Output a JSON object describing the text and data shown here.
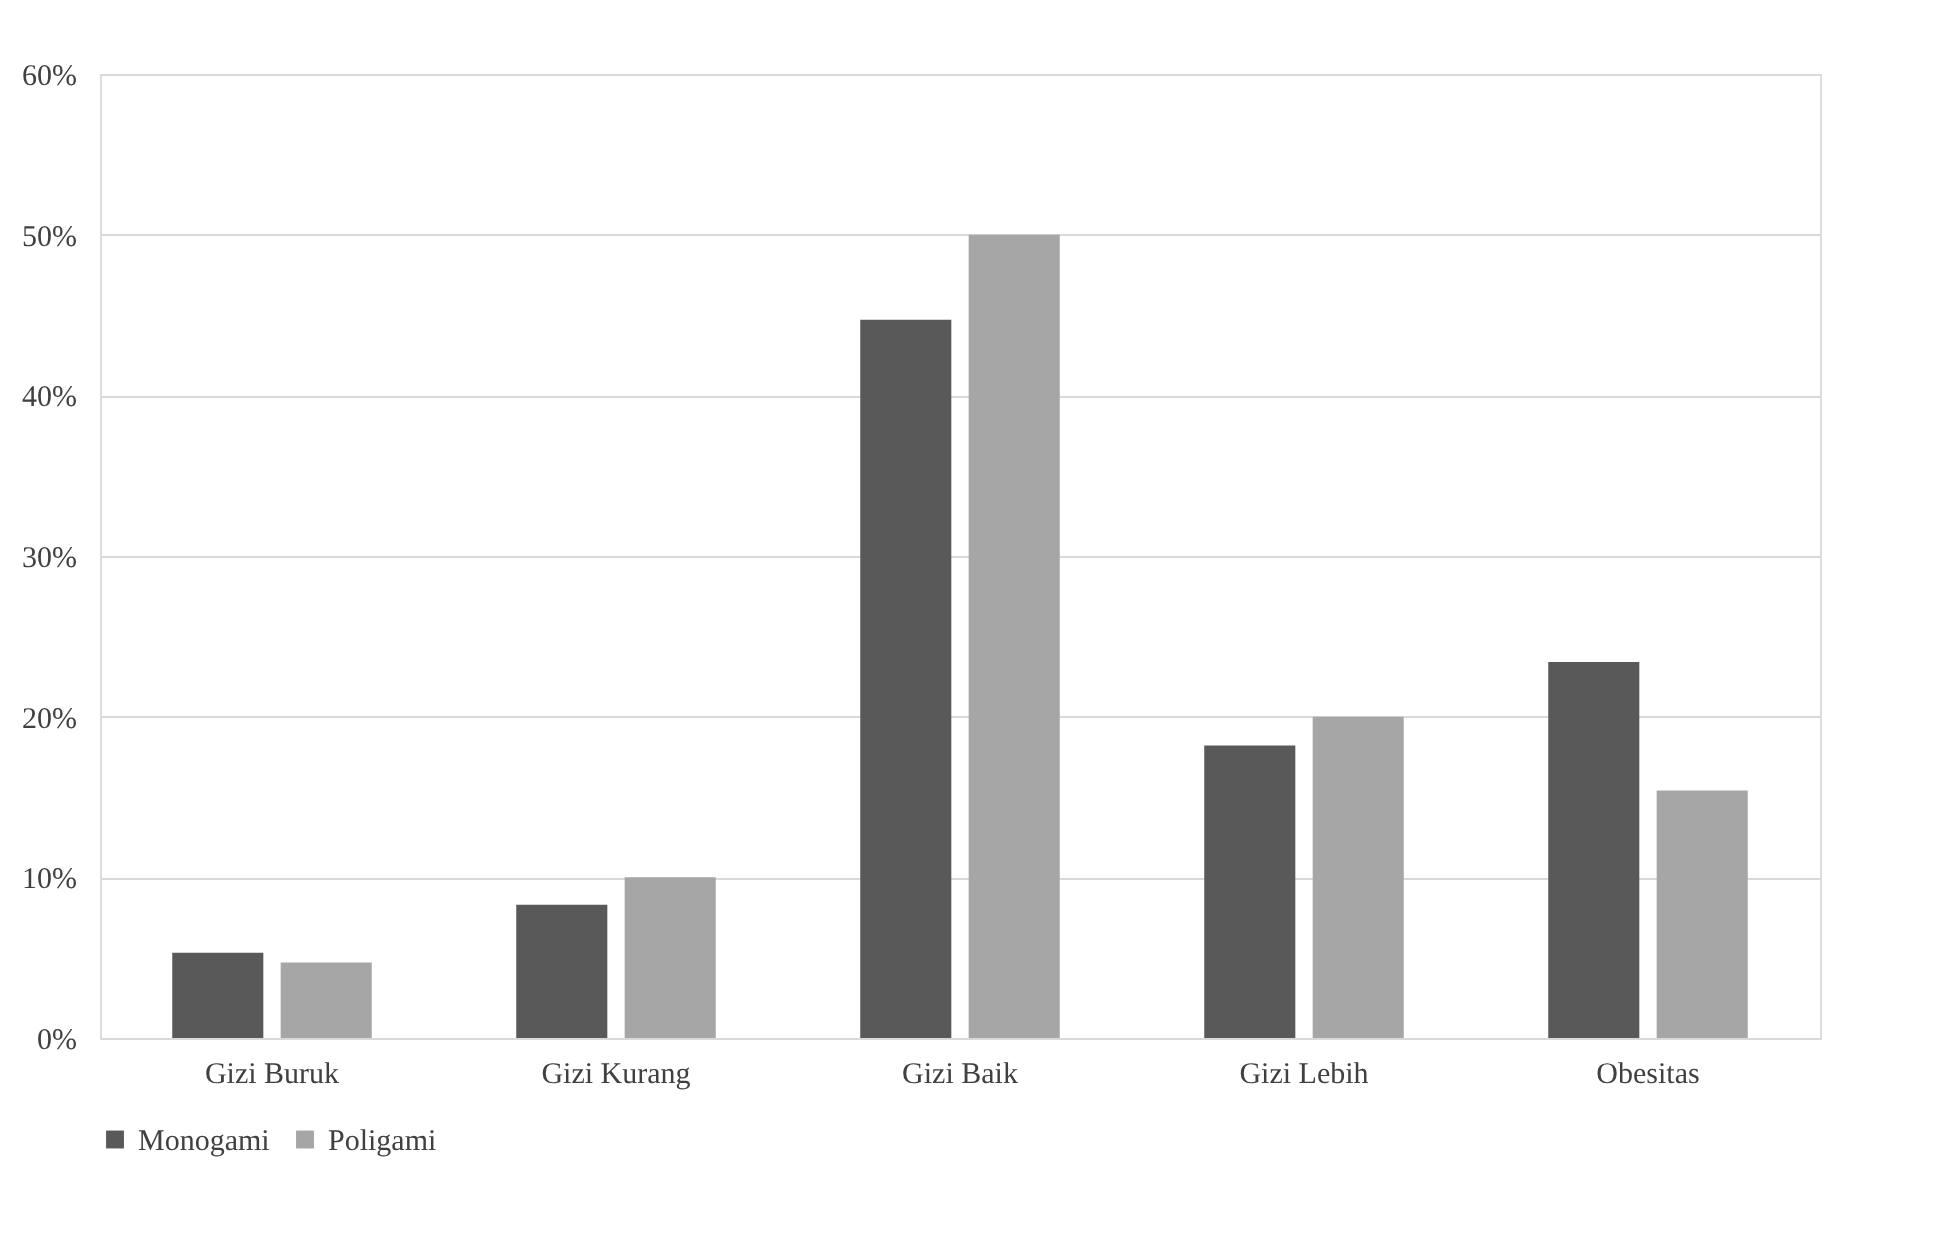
{
  "chart_data": {
    "type": "bar",
    "categories": [
      "Gizi Buruk",
      "Gizi Kurang",
      "Gizi Baik",
      "Gizi Lebih",
      "Obesitas"
    ],
    "series": [
      {
        "name": "Monogami",
        "color": "#595959",
        "values": [
          5.3,
          8.3,
          44.7,
          18.2,
          23.4
        ]
      },
      {
        "name": "Poligami",
        "color": "#a6a6a6",
        "values": [
          4.7,
          10.0,
          50.0,
          20.0,
          15.4
        ]
      }
    ],
    "ylim": [
      0,
      60
    ],
    "yticks": [
      {
        "value": 0,
        "label": "0%"
      },
      {
        "value": 10,
        "label": "10%"
      },
      {
        "value": 20,
        "label": "20%"
      },
      {
        "value": 30,
        "label": "30%"
      },
      {
        "value": 40,
        "label": "40%"
      },
      {
        "value": 50,
        "label": "50%"
      },
      {
        "value": 60,
        "label": "60%"
      }
    ],
    "grid": "y",
    "legend": "bottom"
  }
}
